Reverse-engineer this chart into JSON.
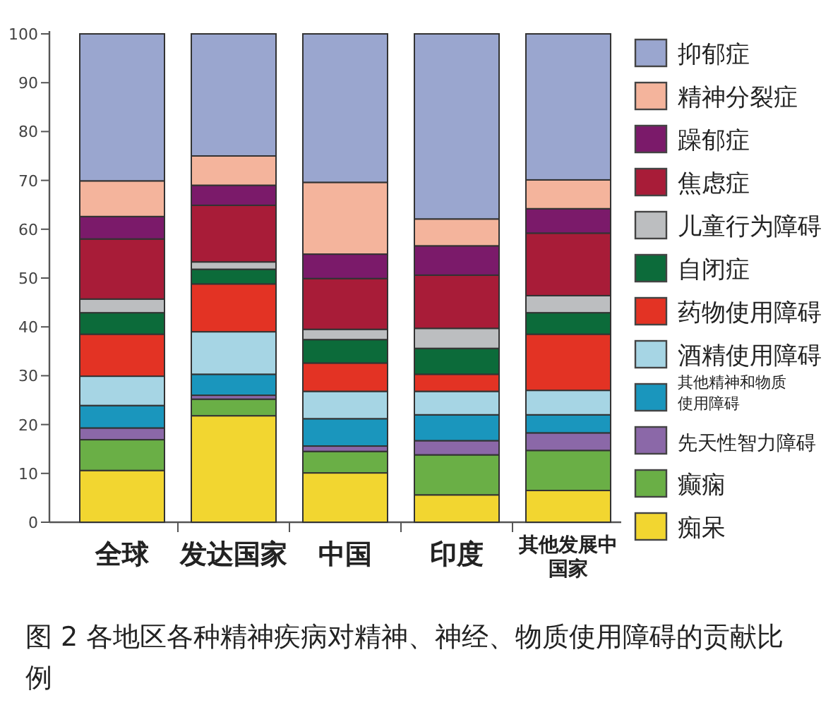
{
  "chart_data": {
    "type": "bar",
    "stacked": true,
    "legend": "right",
    "categories": [
      "全球",
      "发达国家",
      "中国",
      "印度",
      "其他发展中国家"
    ],
    "ylim": [
      0,
      100
    ],
    "yticks": [
      0,
      10,
      20,
      30,
      40,
      50,
      60,
      70,
      80,
      90,
      100
    ],
    "series": [
      {
        "name": "痴呆",
        "color": "#f2d630",
        "values": [
          10.6,
          21.8,
          10.1,
          5.6,
          6.5
        ]
      },
      {
        "name": "癫痫",
        "color": "#6aaf46",
        "values": [
          6.3,
          3.4,
          4.4,
          8.2,
          8.2
        ]
      },
      {
        "name": "先天性智力障碍",
        "color": "#8b68a8",
        "values": [
          2.4,
          0.8,
          1.1,
          2.9,
          3.6
        ]
      },
      {
        "name": "其他精神和物质使用障碍",
        "color": "#1a96bd",
        "values": [
          4.6,
          4.3,
          5.6,
          5.3,
          3.7
        ]
      },
      {
        "name": "酒精使用障碍",
        "color": "#a6d5e4",
        "values": [
          6.0,
          8.7,
          5.6,
          4.8,
          5.0
        ]
      },
      {
        "name": "药物使用障碍",
        "color": "#e33324",
        "values": [
          8.6,
          9.8,
          5.8,
          3.5,
          11.5
        ]
      },
      {
        "name": "自闭症",
        "color": "#0c6b3a",
        "values": [
          4.4,
          3.0,
          4.8,
          5.3,
          4.4
        ]
      },
      {
        "name": "儿童行为障碍",
        "color": "#bcbec0",
        "values": [
          2.8,
          1.5,
          2.1,
          4.1,
          3.5
        ]
      },
      {
        "name": "焦虑症",
        "color": "#a81c38",
        "values": [
          12.3,
          11.6,
          10.4,
          10.9,
          12.8
        ]
      },
      {
        "name": "躁郁症",
        "color": "#7b1a6a",
        "values": [
          4.6,
          4.1,
          5.0,
          6.0,
          5.0
        ]
      },
      {
        "name": "精神分裂症",
        "color": "#f4b49c",
        "values": [
          7.3,
          6.0,
          14.7,
          5.5,
          5.9
        ]
      },
      {
        "name": "抑郁症",
        "color": "#9aa6cf",
        "values": [
          30.1,
          25.0,
          30.4,
          37.9,
          29.9
        ]
      }
    ],
    "annotations": [
      "图 2  各地区各种精神疾病对精神、神经、物质使用障碍的贡献比例"
    ]
  }
}
